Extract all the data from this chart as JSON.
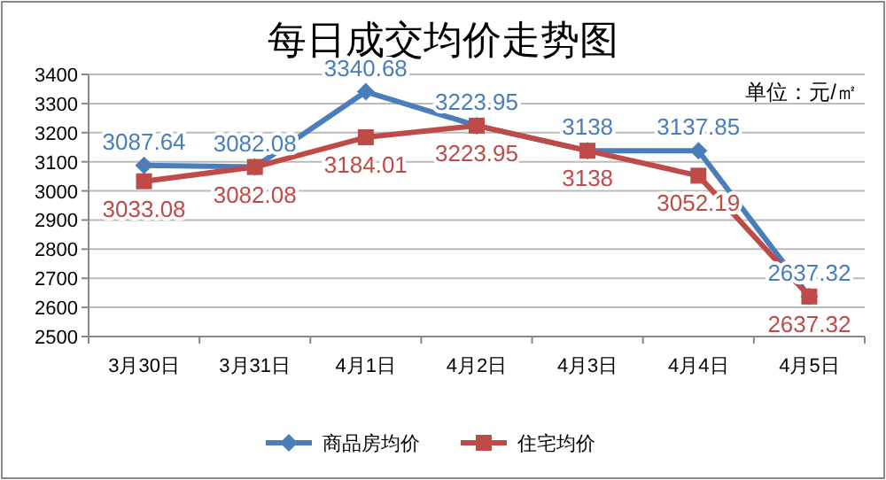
{
  "chart_data": {
    "type": "line",
    "title": "每日成交均价走势图",
    "annotations": [
      "单位：元/㎡"
    ],
    "categories": [
      "3月30日",
      "3月31日",
      "4月1日",
      "4月2日",
      "4月3日",
      "4月4日",
      "4月5日"
    ],
    "series": [
      {
        "name": "商品房均价",
        "color": "#4a7ebb",
        "marker": "diamond",
        "values": [
          3087.64,
          3082.08,
          3340.68,
          3223.95,
          3138,
          3137.85,
          2637.32
        ]
      },
      {
        "name": "住宅均价",
        "color": "#be4b48",
        "marker": "square",
        "values": [
          3033.08,
          3082.08,
          3184.01,
          3223.95,
          3138,
          3052.19,
          2637.32
        ]
      }
    ],
    "ylim": [
      2500,
      3400
    ],
    "yticks": [
      2500,
      2600,
      2700,
      2800,
      2900,
      3000,
      3100,
      3200,
      3300,
      3400
    ],
    "grid": "y",
    "legend": "bottom",
    "data_labels": true,
    "line_style": "solid"
  }
}
